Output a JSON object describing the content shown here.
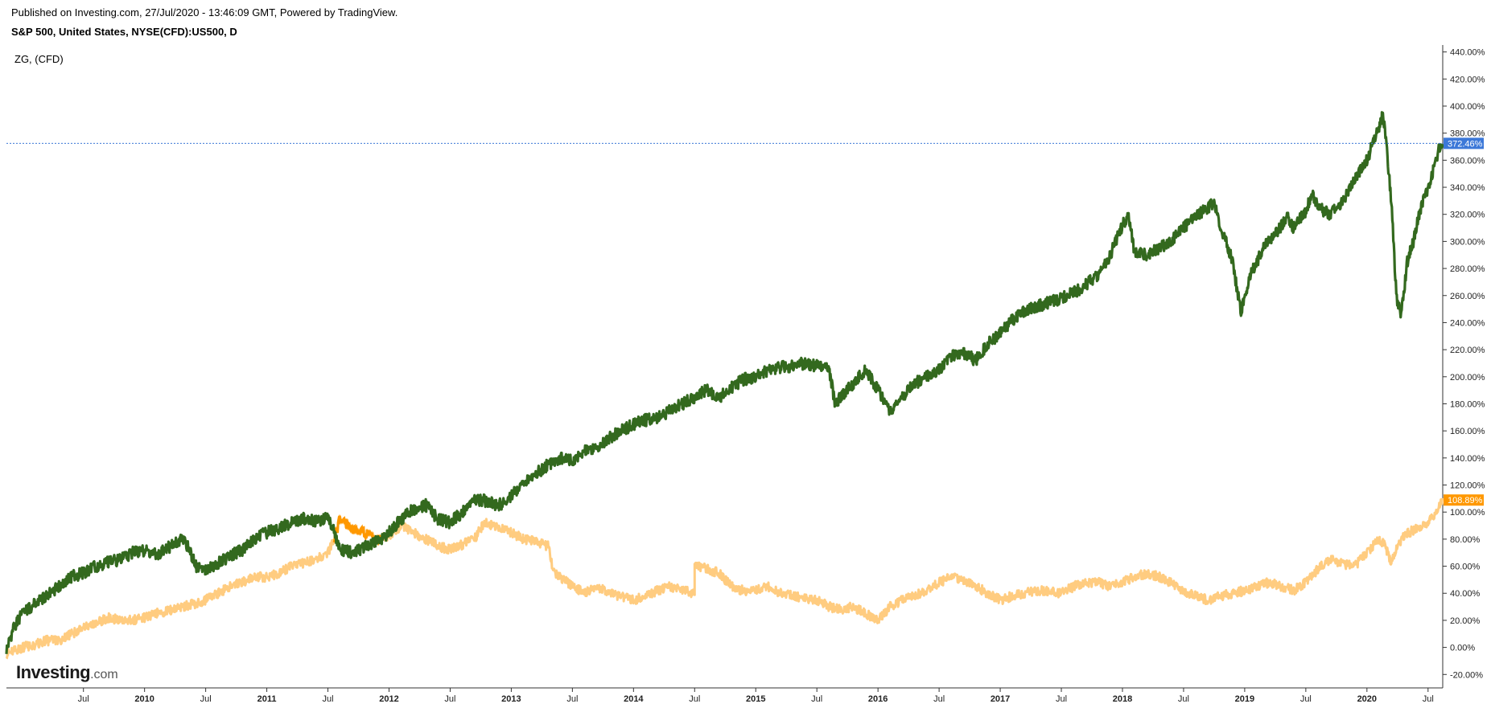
{
  "header": {
    "published": "Published on Investing.com, 27/Jul/2020 - 13:46:09 GMT, Powered by TradingView.",
    "symbol": "S&P 500, United States, NYSE(CFD):US500, D",
    "compare": "ZG,  (CFD)"
  },
  "logo": {
    "name": "Investing",
    "suffix": ".com"
  },
  "chart_data": {
    "type": "line",
    "y_unit": "%",
    "ylim": [
      -25,
      445
    ],
    "y_ticks": [
      -20,
      0,
      20,
      40,
      60,
      80,
      100,
      120,
      140,
      160,
      180,
      200,
      220,
      240,
      260,
      280,
      300,
      320,
      340,
      360,
      380,
      400,
      420,
      440
    ],
    "y_tick_labels": [
      "-20.00%",
      "0.00%",
      "20.00%",
      "40.00%",
      "60.00%",
      "80.00%",
      "100.00%",
      "120.00%",
      "140.00%",
      "160.00%",
      "180.00%",
      "200.00%",
      "220.00%",
      "240.00%",
      "260.00%",
      "280.00%",
      "300.00%",
      "320.00%",
      "340.00%",
      "360.00%",
      "380.00%",
      "400.00%",
      "420.00%",
      "440.00%"
    ],
    "x_range": [
      2008.87,
      2020.62
    ],
    "x_ticks": [
      {
        "label": "Jul",
        "t": 2009.5,
        "year": false
      },
      {
        "label": "2010",
        "t": 2010.0,
        "year": true
      },
      {
        "label": "Jul",
        "t": 2010.5,
        "year": false
      },
      {
        "label": "2011",
        "t": 2011.0,
        "year": true
      },
      {
        "label": "Jul",
        "t": 2011.5,
        "year": false
      },
      {
        "label": "2012",
        "t": 2012.0,
        "year": true
      },
      {
        "label": "Jul",
        "t": 2012.5,
        "year": false
      },
      {
        "label": "2013",
        "t": 2013.0,
        "year": true
      },
      {
        "label": "Jul",
        "t": 2013.5,
        "year": false
      },
      {
        "label": "2014",
        "t": 2014.0,
        "year": true
      },
      {
        "label": "Jul",
        "t": 2014.5,
        "year": false
      },
      {
        "label": "2015",
        "t": 2015.0,
        "year": true
      },
      {
        "label": "Jul",
        "t": 2015.5,
        "year": false
      },
      {
        "label": "2016",
        "t": 2016.0,
        "year": true
      },
      {
        "label": "Jul",
        "t": 2016.5,
        "year": false
      },
      {
        "label": "2017",
        "t": 2017.0,
        "year": true
      },
      {
        "label": "Jul",
        "t": 2017.5,
        "year": false
      },
      {
        "label": "2018",
        "t": 2018.0,
        "year": true
      },
      {
        "label": "Jul",
        "t": 2018.5,
        "year": false
      },
      {
        "label": "2019",
        "t": 2019.0,
        "year": true
      },
      {
        "label": "Jul",
        "t": 2019.5,
        "year": false
      },
      {
        "label": "2020",
        "t": 2020.0,
        "year": true
      },
      {
        "label": "Jul",
        "t": 2020.5,
        "year": false
      }
    ],
    "series": [
      {
        "name": "S&P 500",
        "color": "#33691e",
        "last_value": 372.46,
        "last_label": "372.46%",
        "badge_color": "#3c78d8",
        "points": [
          [
            2008.87,
            -2
          ],
          [
            2008.93,
            15
          ],
          [
            2009.0,
            25
          ],
          [
            2009.1,
            32
          ],
          [
            2009.2,
            38
          ],
          [
            2009.3,
            45
          ],
          [
            2009.4,
            52
          ],
          [
            2009.5,
            55
          ],
          [
            2009.6,
            60
          ],
          [
            2009.7,
            63
          ],
          [
            2009.8,
            65
          ],
          [
            2009.9,
            70
          ],
          [
            2010.0,
            72
          ],
          [
            2010.1,
            68
          ],
          [
            2010.2,
            74
          ],
          [
            2010.3,
            80
          ],
          [
            2010.35,
            75
          ],
          [
            2010.42,
            60
          ],
          [
            2010.5,
            58
          ],
          [
            2010.6,
            62
          ],
          [
            2010.7,
            68
          ],
          [
            2010.8,
            72
          ],
          [
            2010.9,
            80
          ],
          [
            2011.0,
            85
          ],
          [
            2011.1,
            88
          ],
          [
            2011.2,
            92
          ],
          [
            2011.3,
            95
          ],
          [
            2011.4,
            93
          ],
          [
            2011.5,
            96
          ],
          [
            2011.55,
            85
          ],
          [
            2011.6,
            72
          ],
          [
            2011.7,
            70
          ],
          [
            2011.8,
            74
          ],
          [
            2011.9,
            78
          ],
          [
            2012.0,
            85
          ],
          [
            2012.1,
            95
          ],
          [
            2012.2,
            102
          ],
          [
            2012.3,
            105
          ],
          [
            2012.4,
            95
          ],
          [
            2012.5,
            92
          ],
          [
            2012.6,
            100
          ],
          [
            2012.7,
            110
          ],
          [
            2012.8,
            108
          ],
          [
            2012.9,
            105
          ],
          [
            2013.0,
            112
          ],
          [
            2013.1,
            120
          ],
          [
            2013.2,
            128
          ],
          [
            2013.3,
            135
          ],
          [
            2013.4,
            140
          ],
          [
            2013.5,
            138
          ],
          [
            2013.6,
            145
          ],
          [
            2013.7,
            148
          ],
          [
            2013.8,
            155
          ],
          [
            2013.9,
            160
          ],
          [
            2014.0,
            165
          ],
          [
            2014.1,
            168
          ],
          [
            2014.2,
            170
          ],
          [
            2014.3,
            175
          ],
          [
            2014.4,
            180
          ],
          [
            2014.5,
            185
          ],
          [
            2014.6,
            190
          ],
          [
            2014.7,
            185
          ],
          [
            2014.8,
            192
          ],
          [
            2014.9,
            198
          ],
          [
            2015.0,
            200
          ],
          [
            2015.1,
            205
          ],
          [
            2015.2,
            207
          ],
          [
            2015.3,
            208
          ],
          [
            2015.4,
            210
          ],
          [
            2015.5,
            208
          ],
          [
            2015.6,
            205
          ],
          [
            2015.65,
            180
          ],
          [
            2015.7,
            185
          ],
          [
            2015.8,
            195
          ],
          [
            2015.9,
            205
          ],
          [
            2016.0,
            190
          ],
          [
            2016.1,
            175
          ],
          [
            2016.2,
            185
          ],
          [
            2016.3,
            195
          ],
          [
            2016.4,
            200
          ],
          [
            2016.5,
            205
          ],
          [
            2016.6,
            215
          ],
          [
            2016.7,
            218
          ],
          [
            2016.8,
            212
          ],
          [
            2016.9,
            225
          ],
          [
            2017.0,
            232
          ],
          [
            2017.1,
            242
          ],
          [
            2017.2,
            248
          ],
          [
            2017.3,
            252
          ],
          [
            2017.4,
            255
          ],
          [
            2017.5,
            258
          ],
          [
            2017.6,
            262
          ],
          [
            2017.7,
            268
          ],
          [
            2017.8,
            275
          ],
          [
            2017.9,
            290
          ],
          [
            2018.0,
            312
          ],
          [
            2018.05,
            318
          ],
          [
            2018.1,
            292
          ],
          [
            2018.2,
            290
          ],
          [
            2018.3,
            295
          ],
          [
            2018.4,
            300
          ],
          [
            2018.5,
            310
          ],
          [
            2018.6,
            318
          ],
          [
            2018.7,
            325
          ],
          [
            2018.75,
            328
          ],
          [
            2018.8,
            310
          ],
          [
            2018.85,
            300
          ],
          [
            2018.9,
            285
          ],
          [
            2018.97,
            248
          ],
          [
            2019.05,
            275
          ],
          [
            2019.15,
            295
          ],
          [
            2019.25,
            305
          ],
          [
            2019.35,
            318
          ],
          [
            2019.4,
            310
          ],
          [
            2019.5,
            322
          ],
          [
            2019.55,
            335
          ],
          [
            2019.6,
            325
          ],
          [
            2019.7,
            320
          ],
          [
            2019.8,
            330
          ],
          [
            2019.9,
            345
          ],
          [
            2020.0,
            360
          ],
          [
            2020.1,
            385
          ],
          [
            2020.13,
            395
          ],
          [
            2020.16,
            370
          ],
          [
            2020.2,
            330
          ],
          [
            2020.24,
            260
          ],
          [
            2020.28,
            245
          ],
          [
            2020.33,
            285
          ],
          [
            2020.38,
            300
          ],
          [
            2020.44,
            325
          ],
          [
            2020.5,
            340
          ],
          [
            2020.55,
            355
          ],
          [
            2020.6,
            372
          ],
          [
            2020.62,
            372
          ]
        ]
      },
      {
        "name": "ZG",
        "color": "#ffcc80",
        "highlight_color": "#ff9800",
        "last_value": 108.89,
        "last_label": "108.89%",
        "badge_color": "#ff9800",
        "points": [
          [
            2008.87,
            -5
          ],
          [
            2009.0,
            0
          ],
          [
            2009.1,
            2
          ],
          [
            2009.2,
            5
          ],
          [
            2009.3,
            5
          ],
          [
            2009.4,
            10
          ],
          [
            2009.5,
            14
          ],
          [
            2009.6,
            18
          ],
          [
            2009.7,
            22
          ],
          [
            2009.8,
            20
          ],
          [
            2009.9,
            20
          ],
          [
            2010.0,
            22
          ],
          [
            2010.1,
            25
          ],
          [
            2010.2,
            27
          ],
          [
            2010.3,
            30
          ],
          [
            2010.4,
            32
          ],
          [
            2010.5,
            35
          ],
          [
            2010.6,
            40
          ],
          [
            2010.7,
            45
          ],
          [
            2010.8,
            48
          ],
          [
            2010.9,
            52
          ],
          [
            2011.0,
            52
          ],
          [
            2011.1,
            55
          ],
          [
            2011.2,
            60
          ],
          [
            2011.3,
            62
          ],
          [
            2011.4,
            65
          ],
          [
            2011.5,
            70
          ],
          [
            2011.55,
            80
          ],
          [
            2011.6,
            95
          ],
          [
            2011.7,
            88
          ],
          [
            2011.8,
            85
          ],
          [
            2011.9,
            80
          ],
          [
            2012.0,
            82
          ],
          [
            2012.1,
            90
          ],
          [
            2012.2,
            85
          ],
          [
            2012.3,
            80
          ],
          [
            2012.4,
            75
          ],
          [
            2012.5,
            72
          ],
          [
            2012.6,
            76
          ],
          [
            2012.7,
            80
          ],
          [
            2012.75,
            88
          ],
          [
            2012.8,
            92
          ],
          [
            2012.9,
            88
          ],
          [
            2013.0,
            85
          ],
          [
            2013.1,
            80
          ],
          [
            2013.2,
            78
          ],
          [
            2013.3,
            75
          ],
          [
            2013.35,
            55
          ],
          [
            2013.5,
            45
          ],
          [
            2013.6,
            40
          ],
          [
            2013.7,
            45
          ],
          [
            2013.8,
            40
          ],
          [
            2013.9,
            38
          ],
          [
            2014.0,
            35
          ],
          [
            2014.1,
            38
          ],
          [
            2014.2,
            42
          ],
          [
            2014.3,
            45
          ],
          [
            2014.4,
            42
          ],
          [
            2014.5,
            40
          ],
          [
            2014.5,
            60
          ],
          [
            2014.6,
            58
          ],
          [
            2014.7,
            55
          ],
          [
            2014.8,
            45
          ],
          [
            2014.9,
            42
          ],
          [
            2015.0,
            42
          ],
          [
            2015.1,
            45
          ],
          [
            2015.2,
            40
          ],
          [
            2015.3,
            38
          ],
          [
            2015.4,
            36
          ],
          [
            2015.5,
            35
          ],
          [
            2015.6,
            30
          ],
          [
            2015.7,
            28
          ],
          [
            2015.8,
            30
          ],
          [
            2015.9,
            25
          ],
          [
            2016.0,
            20
          ],
          [
            2016.1,
            30
          ],
          [
            2016.2,
            35
          ],
          [
            2016.3,
            38
          ],
          [
            2016.4,
            42
          ],
          [
            2016.5,
            48
          ],
          [
            2016.6,
            52
          ],
          [
            2016.7,
            50
          ],
          [
            2016.8,
            45
          ],
          [
            2016.9,
            40
          ],
          [
            2017.0,
            35
          ],
          [
            2017.1,
            38
          ],
          [
            2017.2,
            40
          ],
          [
            2017.3,
            42
          ],
          [
            2017.4,
            42
          ],
          [
            2017.5,
            40
          ],
          [
            2017.6,
            45
          ],
          [
            2017.7,
            48
          ],
          [
            2017.8,
            48
          ],
          [
            2017.9,
            45
          ],
          [
            2018.0,
            48
          ],
          [
            2018.1,
            52
          ],
          [
            2018.2,
            55
          ],
          [
            2018.3,
            52
          ],
          [
            2018.4,
            48
          ],
          [
            2018.5,
            42
          ],
          [
            2018.6,
            38
          ],
          [
            2018.7,
            35
          ],
          [
            2018.8,
            38
          ],
          [
            2018.9,
            40
          ],
          [
            2019.0,
            42
          ],
          [
            2019.1,
            45
          ],
          [
            2019.2,
            48
          ],
          [
            2019.3,
            45
          ],
          [
            2019.4,
            42
          ],
          [
            2019.5,
            48
          ],
          [
            2019.6,
            58
          ],
          [
            2019.7,
            65
          ],
          [
            2019.8,
            62
          ],
          [
            2019.9,
            60
          ],
          [
            2020.0,
            70
          ],
          [
            2020.1,
            80
          ],
          [
            2020.15,
            75
          ],
          [
            2020.2,
            62
          ],
          [
            2020.25,
            75
          ],
          [
            2020.3,
            82
          ],
          [
            2020.4,
            88
          ],
          [
            2020.5,
            92
          ],
          [
            2020.55,
            98
          ],
          [
            2020.6,
            105
          ],
          [
            2020.62,
            109
          ]
        ]
      }
    ]
  }
}
